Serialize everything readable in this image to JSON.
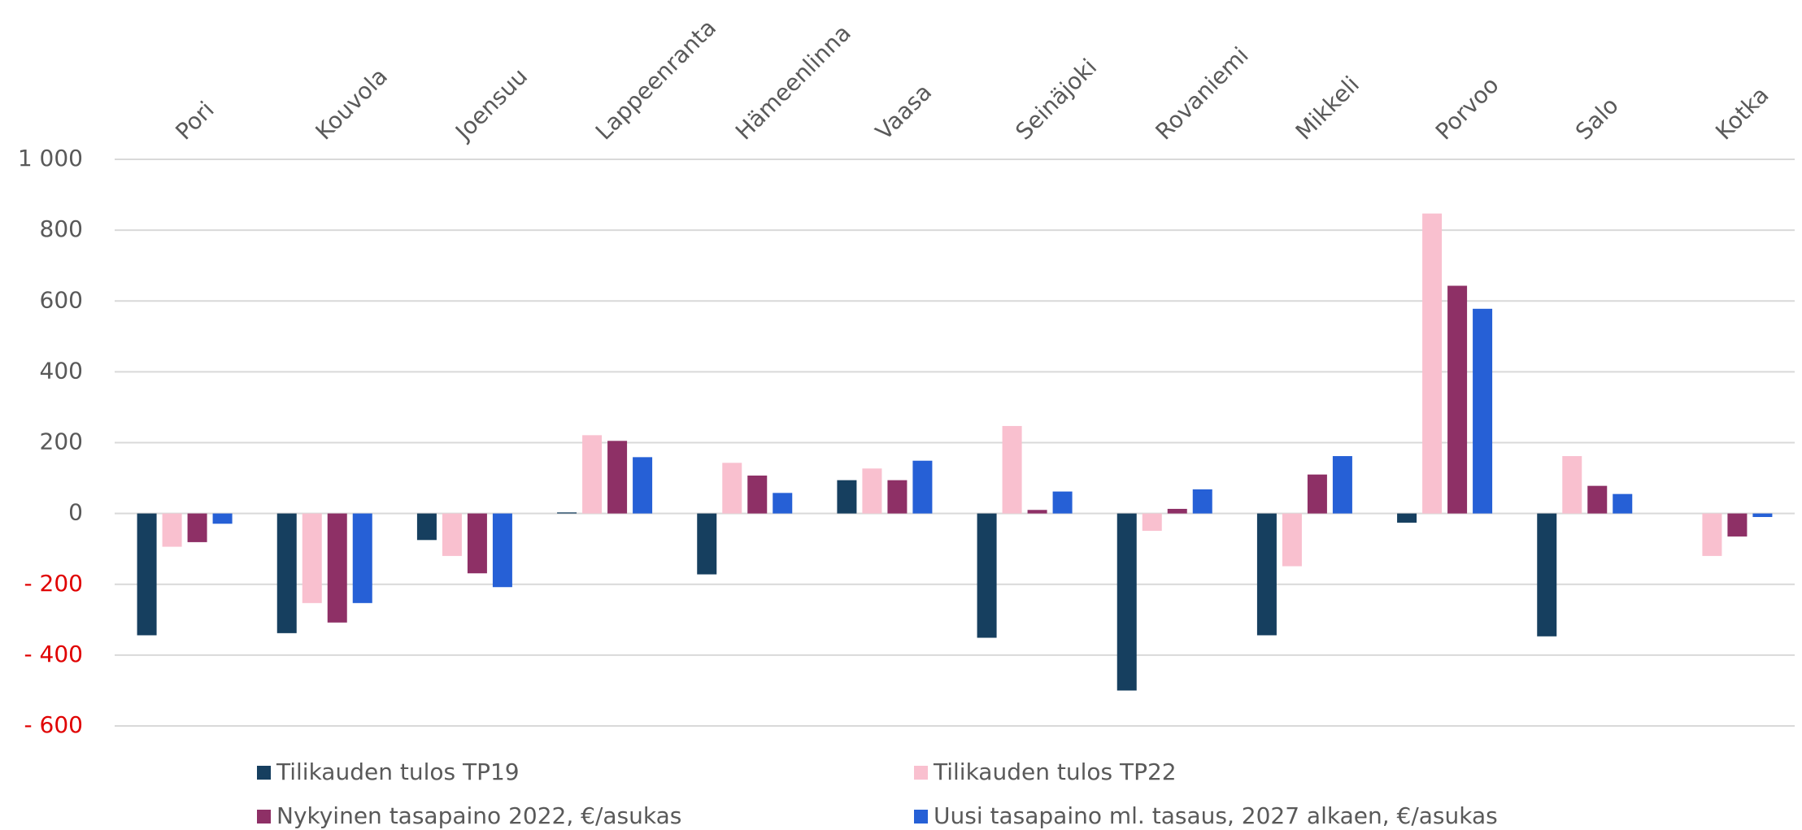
{
  "chart_data": {
    "type": "bar",
    "categories": [
      "Pori",
      "Kouvola",
      "Joensuu",
      "Lappeenranta",
      "Hämeenlinna",
      "Vaasa",
      "Seinäjoki",
      "Rovaniemi",
      "Mikkeli",
      "Porvoo",
      "Salo",
      "Kotka"
    ],
    "series": [
      {
        "name": "Tilikauden tulos TP19",
        "color": "#163f5f",
        "values": [
          -344,
          -338,
          -75,
          3,
          -172,
          94,
          -351,
          -500,
          -344,
          -26,
          -347,
          0
        ]
      },
      {
        "name": "Tilikauden tulos TP22",
        "color": "#f9c0cf",
        "values": [
          -94,
          -253,
          -120,
          221,
          143,
          127,
          247,
          -49,
          -149,
          847,
          162,
          -120
        ]
      },
      {
        "name": "Nykyinen tasapaino 2022, €/asukas",
        "color": "#8e3066",
        "values": [
          -81,
          -308,
          -169,
          205,
          107,
          94,
          10,
          13,
          110,
          643,
          78,
          -65
        ]
      },
      {
        "name": "Uusi tasapaino ml. tasaus, 2027 alkaen, €/asukas",
        "color": "#2660d6",
        "values": [
          -29,
          -253,
          -208,
          159,
          58,
          149,
          62,
          68,
          162,
          578,
          55,
          -10
        ]
      }
    ],
    "ylim": [
      -600,
      1000
    ],
    "yticks": [
      {
        "value": -600,
        "label": "- 600"
      },
      {
        "value": -400,
        "label": "- 400"
      },
      {
        "value": -200,
        "label": "- 200"
      },
      0,
      200,
      400,
      600,
      800,
      {
        "value": 1000,
        "label": "1 000"
      }
    ],
    "grid": true,
    "legend": "bottom"
  }
}
